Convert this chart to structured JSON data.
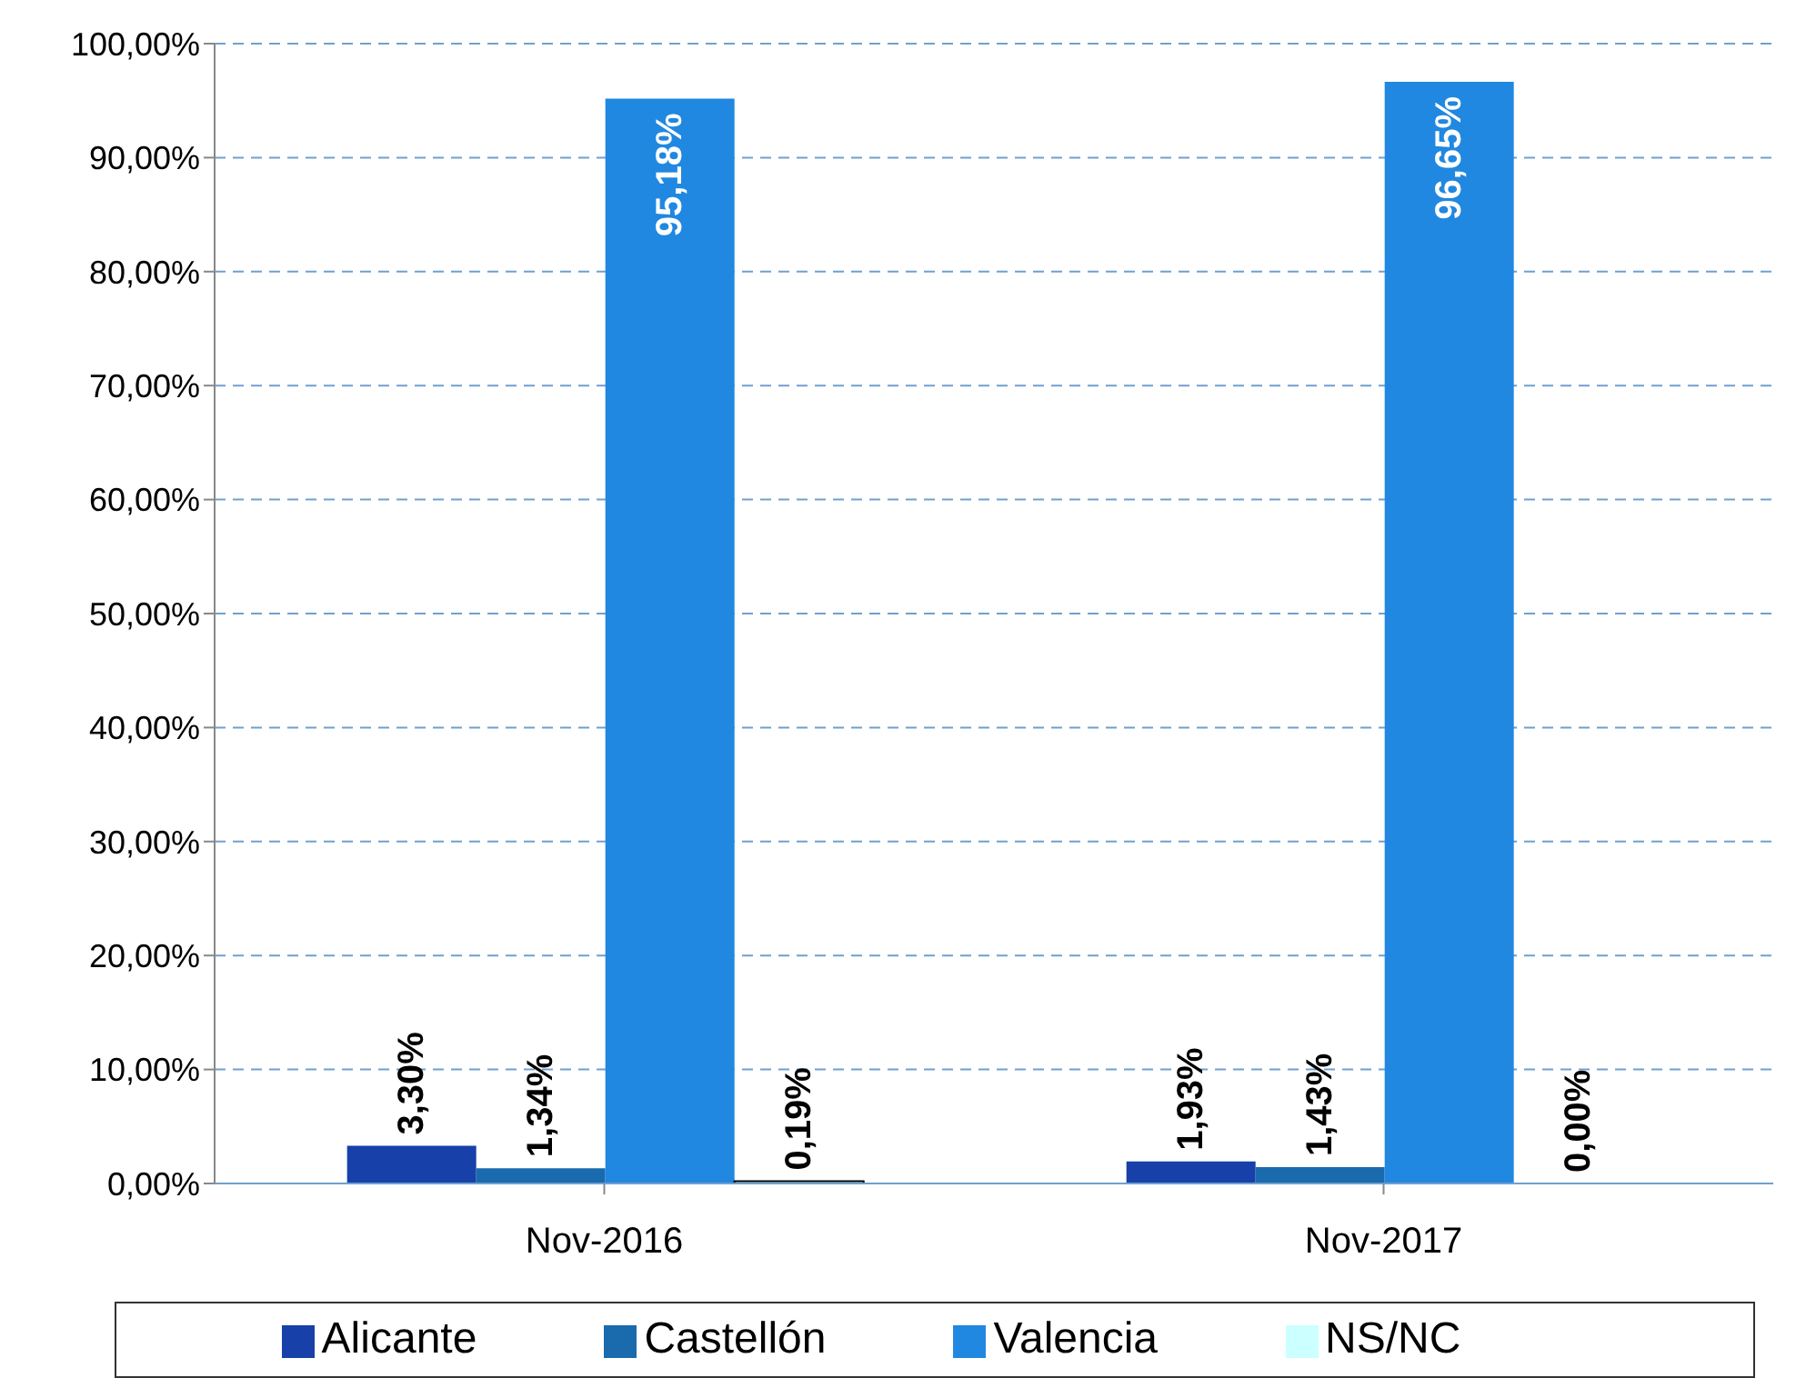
{
  "chart_data": {
    "type": "bar",
    "categories": [
      "Nov-2016",
      "Nov-2017"
    ],
    "series": [
      {
        "name": "Alicante",
        "color": "#1740a8",
        "values": [
          3.3,
          1.93
        ],
        "value_labels": [
          "3,30%",
          "1,93%"
        ]
      },
      {
        "name": "Castellón",
        "color": "#1a6aae",
        "values": [
          1.34,
          1.43
        ],
        "value_labels": [
          "1,34%",
          "1,43%"
        ]
      },
      {
        "name": "Valencia",
        "color": "#2088e0",
        "values": [
          95.18,
          96.65
        ],
        "value_labels": [
          "95,18%",
          "96,65%"
        ]
      },
      {
        "name": "NS/NC",
        "color": "#ccffff",
        "values": [
          0.19,
          0.0
        ],
        "value_labels": [
          "0,19%",
          "0,00%"
        ]
      }
    ],
    "ylim": [
      0,
      100
    ],
    "yticks": [
      {
        "value": 0,
        "label": "0,00%"
      },
      {
        "value": 10,
        "label": "10,00%"
      },
      {
        "value": 20,
        "label": "20,00%"
      },
      {
        "value": 30,
        "label": "30,00%"
      },
      {
        "value": 40,
        "label": "40,00%"
      },
      {
        "value": 50,
        "label": "50,00%"
      },
      {
        "value": 60,
        "label": "60,00%"
      },
      {
        "value": 70,
        "label": "70,00%"
      },
      {
        "value": 80,
        "label": "80,00%"
      },
      {
        "value": 90,
        "label": "90,00%"
      },
      {
        "value": 100,
        "label": "100,00%"
      }
    ],
    "grid": "y",
    "legend": "bottom"
  }
}
